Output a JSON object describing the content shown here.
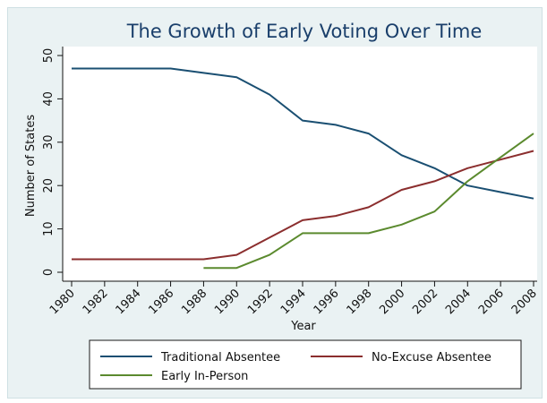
{
  "chart_data": {
    "type": "line",
    "title": "The Growth of Early Voting Over Time",
    "xlabel": "Year",
    "ylabel": "Number of States",
    "xlim": [
      1980,
      2008
    ],
    "ylim": [
      0,
      50
    ],
    "x_ticks": [
      1980,
      1982,
      1984,
      1986,
      1988,
      1990,
      1992,
      1994,
      1996,
      1998,
      2000,
      2002,
      2004,
      2006,
      2008
    ],
    "y_ticks": [
      0,
      10,
      20,
      30,
      40,
      50
    ],
    "grid": false,
    "legend_position": "bottom",
    "series": [
      {
        "name": "Traditional Absentee",
        "color": "#1a4f72",
        "x": [
          1980,
          1982,
          1984,
          1986,
          1988,
          1990,
          1992,
          1994,
          1996,
          1998,
          2000,
          2002,
          2004,
          2006,
          2008
        ],
        "values": [
          47,
          47,
          47,
          47,
          46,
          45,
          41,
          35,
          34,
          32,
          27,
          24,
          20,
          18.5,
          17
        ]
      },
      {
        "name": "No-Excuse Absentee",
        "color": "#8b2e2e",
        "x": [
          1980,
          1982,
          1984,
          1986,
          1988,
          1990,
          1992,
          1994,
          1996,
          1998,
          2000,
          2002,
          2004,
          2006,
          2008
        ],
        "values": [
          3,
          3,
          3,
          3,
          3,
          4,
          8,
          12,
          13,
          15,
          19,
          21,
          24,
          26,
          28
        ]
      },
      {
        "name": "Early In-Person",
        "color": "#5b8a2e",
        "x": [
          1988,
          1990,
          1992,
          1994,
          1996,
          1998,
          2000,
          2002,
          2004,
          2006,
          2008
        ],
        "values": [
          1,
          1,
          4,
          9,
          9,
          9,
          11,
          14,
          21,
          26.5,
          32
        ]
      }
    ]
  }
}
